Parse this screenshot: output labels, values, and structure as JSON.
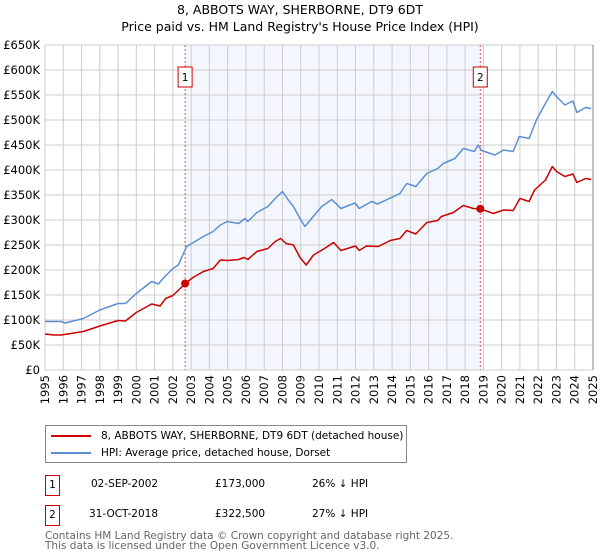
{
  "chart_data": {
    "type": "line",
    "title": "8, ABBOTS WAY, SHERBORNE, DT9 6DT",
    "subtitle": "Price paid vs. HM Land Registry's House Price Index (HPI)",
    "xlim": [
      1995,
      2025
    ],
    "ylim": [
      0,
      650000
    ],
    "x_ticks": [
      "1995",
      "1996",
      "1997",
      "1998",
      "1999",
      "2000",
      "2001",
      "2002",
      "2003",
      "2004",
      "2005",
      "2006",
      "2007",
      "2008",
      "2009",
      "2010",
      "2011",
      "2012",
      "2013",
      "2014",
      "2015",
      "2016",
      "2017",
      "2018",
      "2019",
      "2020",
      "2021",
      "2022",
      "2023",
      "2024",
      "2025"
    ],
    "y_ticks": [
      {
        "v": 0,
        "label": "£0"
      },
      {
        "v": 50000,
        "label": "£50K"
      },
      {
        "v": 100000,
        "label": "£100K"
      },
      {
        "v": 150000,
        "label": "£150K"
      },
      {
        "v": 200000,
        "label": "£200K"
      },
      {
        "v": 250000,
        "label": "£250K"
      },
      {
        "v": 300000,
        "label": "£300K"
      },
      {
        "v": 350000,
        "label": "£350K"
      },
      {
        "v": 400000,
        "label": "£400K"
      },
      {
        "v": 450000,
        "label": "£450K"
      },
      {
        "v": 500000,
        "label": "£500K"
      },
      {
        "v": 550000,
        "label": "£550K"
      },
      {
        "v": 600000,
        "label": "£600K"
      },
      {
        "v": 650000,
        "label": "£650K"
      }
    ],
    "grid": true,
    "series": [
      {
        "name": "8, ABBOTS WAY, SHERBORNE, DT9 6DT (detached house)",
        "color": "#cc0000",
        "x": [
          1995.0,
          1995.5,
          1995.9,
          1997.1,
          1998.0,
          1999.0,
          1999.4,
          2000.0,
          2000.84,
          2001.3,
          2001.6,
          2002.0,
          2002.68,
          2003.1,
          2003.67,
          2004.2,
          2004.6,
          2005.0,
          2005.6,
          2005.9,
          2006.1,
          2006.6,
          2007.2,
          2007.6,
          2007.9,
          2008.2,
          2008.6,
          2008.96,
          2009.3,
          2009.7,
          2010.3,
          2010.8,
          2011.2,
          2012.0,
          2012.2,
          2012.6,
          2013.25,
          2013.9,
          2014.43,
          2014.8,
          2015.3,
          2015.9,
          2016.5,
          2016.7,
          2017.36,
          2017.9,
          2018.45,
          2018.83,
          2019.55,
          2020.1,
          2020.63,
          2021.0,
          2021.5,
          2021.8,
          2022.4,
          2022.77,
          2023.0,
          2023.46,
          2023.9,
          2024.12,
          2024.6,
          2024.9
        ],
        "y": [
          72000,
          70000,
          70000,
          77000,
          88000,
          99000,
          98000,
          115000,
          132000,
          128000,
          143000,
          149000,
          173000,
          185000,
          197000,
          203000,
          220000,
          219000,
          221000,
          225000,
          221000,
          237000,
          243000,
          257000,
          263000,
          253000,
          250000,
          225000,
          210000,
          230000,
          243000,
          255000,
          239000,
          248000,
          239000,
          248000,
          247000,
          259000,
          263000,
          279000,
          272000,
          295000,
          299000,
          307000,
          315000,
          329000,
          323000,
          322500,
          313000,
          320000,
          319000,
          343000,
          337000,
          360000,
          380000,
          407000,
          397000,
          387000,
          392000,
          375000,
          383000,
          381000
        ]
      },
      {
        "name": "HPI: Average price, detached house, Dorset",
        "color": "#5b8fd4",
        "x": [
          1995.0,
          1995.9,
          1996.1,
          1997.1,
          1998.0,
          1999.0,
          1999.4,
          2000.0,
          2000.84,
          2001.2,
          2001.46,
          2002.0,
          2002.3,
          2002.75,
          2003.67,
          2004.2,
          2004.6,
          2004.98,
          2005.6,
          2005.95,
          2006.1,
          2006.6,
          2007.2,
          2007.6,
          2008.0,
          2008.3,
          2008.6,
          2008.96,
          2009.23,
          2010.15,
          2010.7,
          2011.2,
          2011.97,
          2012.2,
          2012.88,
          2013.2,
          2014.43,
          2014.8,
          2015.3,
          2015.9,
          2016.5,
          2016.8,
          2017.44,
          2017.9,
          2018.5,
          2018.71,
          2018.9,
          2019.63,
          2020.1,
          2020.63,
          2020.96,
          2021.5,
          2021.9,
          2022.3,
          2022.77,
          2023.0,
          2023.46,
          2023.9,
          2024.12,
          2024.6,
          2024.9
        ],
        "y": [
          97000,
          97000,
          94000,
          103000,
          120000,
          133000,
          133000,
          153000,
          177000,
          172000,
          183000,
          203000,
          210000,
          247000,
          267000,
          277000,
          290000,
          297000,
          293000,
          303000,
          297000,
          315000,
          327000,
          343000,
          357000,
          341000,
          327000,
          303000,
          287000,
          327000,
          341000,
          323000,
          334000,
          323000,
          337000,
          332000,
          353000,
          373000,
          367000,
          393000,
          403000,
          413000,
          423000,
          443000,
          437000,
          450000,
          439000,
          430000,
          440000,
          437000,
          467000,
          463000,
          500000,
          527000,
          557000,
          547000,
          530000,
          538000,
          515000,
          525000,
          523000
        ]
      }
    ],
    "sales": [
      {
        "id": "1",
        "x": 2002.67,
        "date": "02-SEP-2002",
        "price": "£173,000",
        "value": 173000,
        "hpi": "26% ↓ HPI"
      },
      {
        "id": "2",
        "x": 2018.83,
        "date": "31-OCT-2018",
        "price": "£322,500",
        "value": 322500,
        "hpi": "27% ↓ HPI"
      }
    ],
    "legend_position": "bottom"
  },
  "footer": {
    "line1": "Contains HM Land Registry data © Crown copyright and database right 2025.",
    "line2": "This data is licensed under the Open Government Licence v3.0."
  }
}
